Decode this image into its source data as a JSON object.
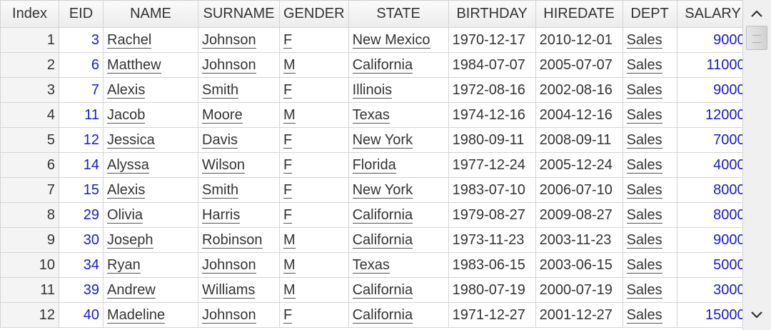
{
  "table": {
    "columns": [
      "Index",
      "EID",
      "NAME",
      "SURNAME",
      "GENDER",
      "STATE",
      "BIRTHDAY",
      "HIREDATE",
      "DEPT",
      "SALARY"
    ],
    "rows": [
      [
        "1",
        "3",
        "Rachel",
        "Johnson",
        "F",
        "New Mexico",
        "1970-12-17",
        "2010-12-01",
        "Sales",
        "9000"
      ],
      [
        "2",
        "6",
        "Matthew",
        "Johnson",
        "M",
        "California",
        "1984-07-07",
        "2005-07-07",
        "Sales",
        "11000"
      ],
      [
        "3",
        "7",
        "Alexis",
        "Smith",
        "F",
        "Illinois",
        "1972-08-16",
        "2002-08-16",
        "Sales",
        "9000"
      ],
      [
        "4",
        "11",
        "Jacob",
        "Moore",
        "M",
        "Texas",
        "1974-12-16",
        "2004-12-16",
        "Sales",
        "12000"
      ],
      [
        "5",
        "12",
        "Jessica",
        "Davis",
        "F",
        "New York",
        "1980-09-11",
        "2008-09-11",
        "Sales",
        "7000"
      ],
      [
        "6",
        "14",
        "Alyssa",
        "Wilson",
        "F",
        "Florida",
        "1977-12-24",
        "2005-12-24",
        "Sales",
        "4000"
      ],
      [
        "7",
        "15",
        "Alexis",
        "Smith",
        "F",
        "New York",
        "1983-07-10",
        "2006-07-10",
        "Sales",
        "8000"
      ],
      [
        "8",
        "29",
        "Olivia",
        "Harris",
        "F",
        "California",
        "1979-08-27",
        "2009-08-27",
        "Sales",
        "8000"
      ],
      [
        "9",
        "30",
        "Joseph",
        "Robinson",
        "M",
        "California",
        "1973-11-23",
        "2003-11-23",
        "Sales",
        "9000"
      ],
      [
        "10",
        "34",
        "Ryan",
        "Johnson",
        "M",
        "Texas",
        "1983-06-15",
        "2003-06-15",
        "Sales",
        "5000"
      ],
      [
        "11",
        "39",
        "Andrew",
        "Williams",
        "M",
        "California",
        "1980-07-19",
        "2000-07-19",
        "Sales",
        "3000"
      ],
      [
        "12",
        "40",
        "Madeline",
        "Johnson",
        "F",
        "California",
        "1971-12-27",
        "2001-12-27",
        "Sales",
        "15000"
      ]
    ]
  },
  "scrollbar": {
    "up_icon": "chevron-up-icon",
    "down_icon": "chevron-down-icon"
  },
  "colors": {
    "number_text": "#1a1acc",
    "header_bg": "#ececec",
    "grid_line": "#d4d4d4"
  }
}
